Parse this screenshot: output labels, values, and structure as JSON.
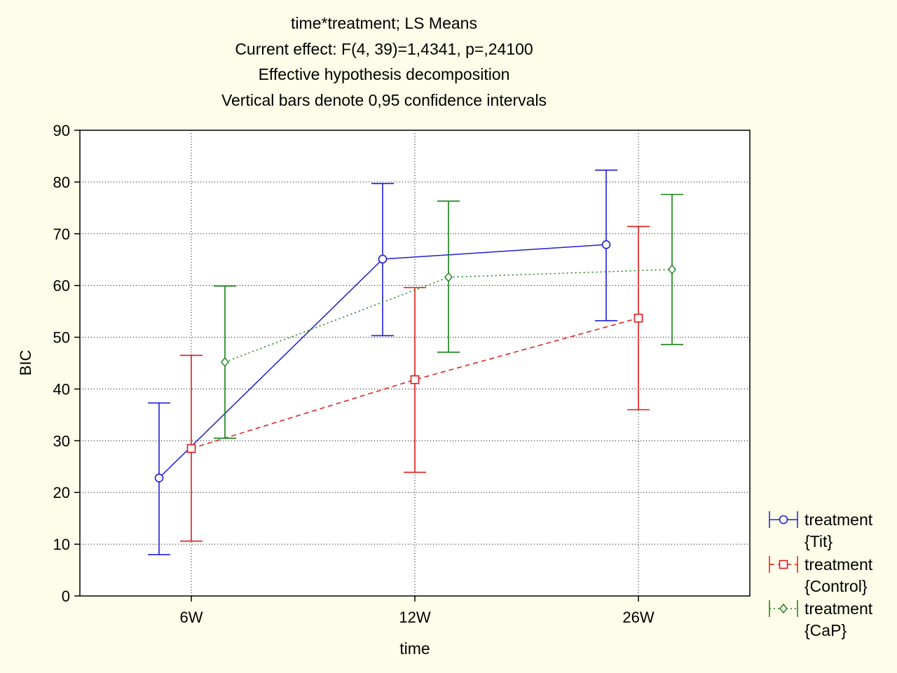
{
  "chart_data": {
    "type": "line",
    "title_lines": [
      "time*treatment; LS Means",
      "Current effect: F(4, 39)=1,4341, p=,24100",
      "Effective hypothesis decomposition",
      "Vertical bars denote 0,95 confidence intervals"
    ],
    "xlabel": "time",
    "ylabel": "BIC",
    "categories": [
      "6W",
      "12W",
      "26W"
    ],
    "ylim": [
      0,
      90
    ],
    "yticks": [
      "0",
      "10",
      "20",
      "30",
      "40",
      "50",
      "60",
      "70",
      "80",
      "90"
    ],
    "grid": true,
    "legend_position": "right",
    "series": [
      {
        "name_line1": "treatment",
        "name_line2": "{Tit}",
        "color": "#1f1fd6",
        "marker": "circle",
        "linestyle": "solid",
        "values": [
          22.8,
          65.1,
          67.9
        ],
        "lower": [
          8.0,
          50.3,
          53.2
        ],
        "upper": [
          37.3,
          79.7,
          82.3
        ]
      },
      {
        "name_line1": "treatment",
        "name_line2": "{Control}",
        "color": "#e01818",
        "marker": "square",
        "linestyle": "dashed",
        "values": [
          28.5,
          41.8,
          53.7
        ],
        "lower": [
          10.6,
          23.9,
          36.0
        ],
        "upper": [
          46.5,
          59.6,
          71.4
        ]
      },
      {
        "name_line1": "treatment",
        "name_line2": "{CaP}",
        "color": "#138013",
        "marker": "diamond",
        "linestyle": "dotted",
        "values": [
          45.2,
          61.6,
          63.1
        ],
        "lower": [
          30.5,
          47.1,
          48.6
        ],
        "upper": [
          59.9,
          76.3,
          77.6
        ]
      }
    ]
  }
}
